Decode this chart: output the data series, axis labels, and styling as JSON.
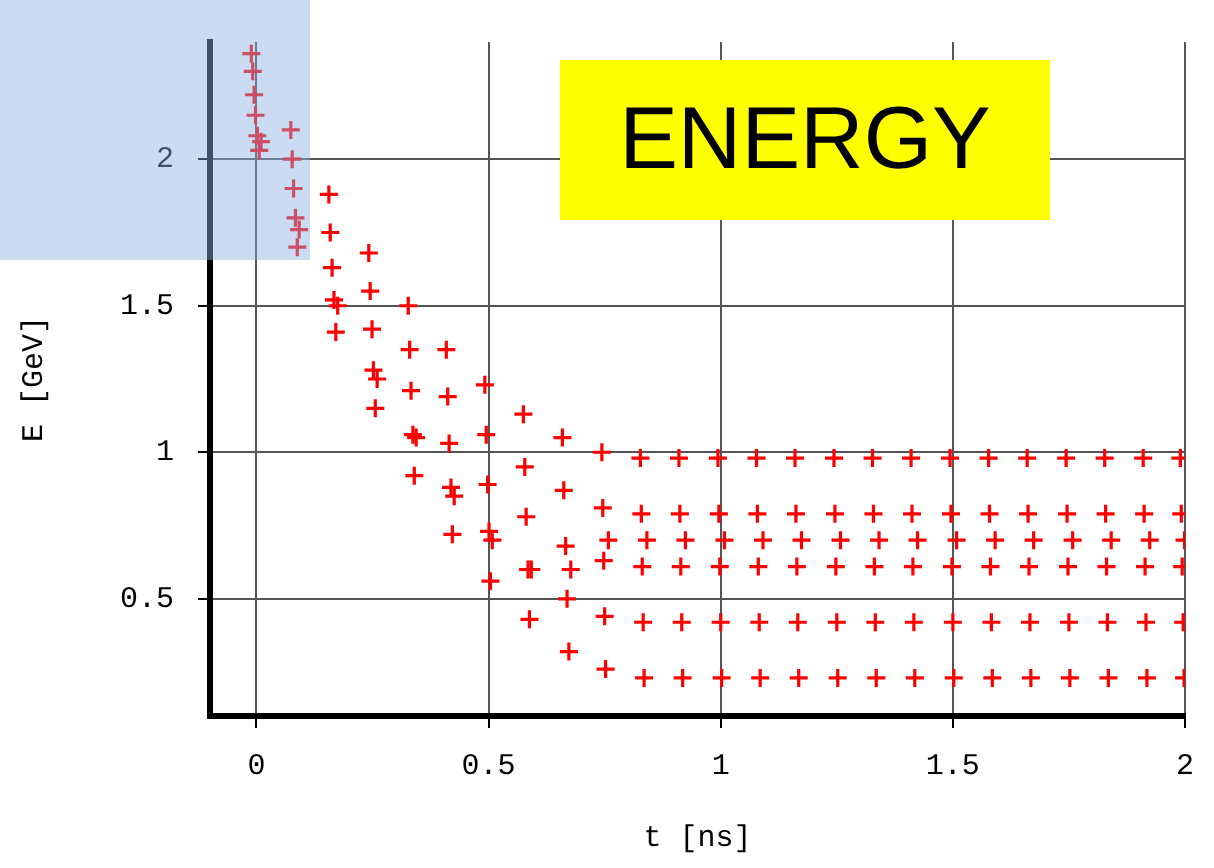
{
  "chart_data": {
    "type": "scatter",
    "xlabel": "t [ns]",
    "ylabel": "E [GeV]",
    "annotations": [
      "ENERGY"
    ],
    "xlim": [
      -0.1,
      2
    ],
    "xticks": [
      0,
      0.5,
      1,
      1.5,
      2
    ],
    "ylim": [
      0.1,
      2.4
    ],
    "yticks": [
      0.5,
      1,
      1.5,
      2
    ],
    "grid": true,
    "legend": false,
    "marker": "cross",
    "series": [
      {
        "color": "#ff0000",
        "x": [
          -0.011,
          -0.008,
          -0.005,
          -0.002,
          0.002,
          0.006,
          0.01,
          0.074,
          0.077,
          0.08,
          0.084,
          0.088,
          0.092,
          0.156,
          0.159,
          0.163,
          0.167,
          0.171,
          0.175,
          0.242,
          0.245,
          0.249,
          0.252,
          0.256,
          0.26,
          0.327,
          0.33,
          0.333,
          0.337,
          0.34,
          0.344,
          0.409,
          0.412,
          0.415,
          0.419,
          0.422,
          0.426,
          0.492,
          0.495,
          0.498,
          0.501,
          0.504,
          0.508,
          0.575,
          0.578,
          0.581,
          0.585,
          0.588,
          0.592,
          0.659,
          0.662,
          0.666,
          0.669,
          0.673,
          0.677,
          0.744,
          0.746,
          0.748,
          0.75,
          0.752,
          0.758,
          0.827,
          0.829,
          0.831,
          0.833,
          0.835,
          0.841,
          0.91,
          0.912,
          0.914,
          0.916,
          0.918,
          0.924,
          0.994,
          0.996,
          0.998,
          1.0,
          1.002,
          1.008,
          1.077,
          1.079,
          1.081,
          1.083,
          1.085,
          1.091,
          1.16,
          1.162,
          1.164,
          1.166,
          1.168,
          1.174,
          1.244,
          1.246,
          1.248,
          1.25,
          1.252,
          1.258,
          1.327,
          1.329,
          1.331,
          1.333,
          1.335,
          1.341,
          1.41,
          1.412,
          1.414,
          1.416,
          1.418,
          1.424,
          1.494,
          1.496,
          1.498,
          1.5,
          1.502,
          1.508,
          1.577,
          1.579,
          1.581,
          1.583,
          1.585,
          1.591,
          1.66,
          1.662,
          1.664,
          1.666,
          1.668,
          1.674,
          1.744,
          1.746,
          1.748,
          1.75,
          1.752,
          1.758,
          1.827,
          1.829,
          1.831,
          1.833,
          1.835,
          1.841,
          1.91,
          1.912,
          1.914,
          1.916,
          1.918,
          1.924,
          1.99,
          1.992,
          1.994,
          1.996,
          1.998,
          1.999
        ],
        "values": [
          2.36,
          2.3,
          2.22,
          2.15,
          2.08,
          2.03,
          2.06,
          2.1,
          2.0,
          1.9,
          1.8,
          1.7,
          1.76,
          1.88,
          1.75,
          1.63,
          1.52,
          1.41,
          1.5,
          1.68,
          1.55,
          1.42,
          1.28,
          1.15,
          1.25,
          1.5,
          1.35,
          1.21,
          1.06,
          0.92,
          1.05,
          1.35,
          1.19,
          1.03,
          0.88,
          0.72,
          0.85,
          1.23,
          1.06,
          0.89,
          0.73,
          0.56,
          0.7,
          1.13,
          0.95,
          0.78,
          0.6,
          0.43,
          0.6,
          1.05,
          0.87,
          0.68,
          0.5,
          0.32,
          0.6,
          1.0,
          0.81,
          0.63,
          0.44,
          0.26,
          0.7,
          0.98,
          0.79,
          0.61,
          0.42,
          0.23,
          0.7,
          0.98,
          0.79,
          0.61,
          0.42,
          0.23,
          0.7,
          0.98,
          0.79,
          0.61,
          0.42,
          0.23,
          0.7,
          0.98,
          0.79,
          0.61,
          0.42,
          0.23,
          0.7,
          0.98,
          0.79,
          0.61,
          0.42,
          0.23,
          0.7,
          0.98,
          0.79,
          0.61,
          0.42,
          0.23,
          0.7,
          0.98,
          0.79,
          0.61,
          0.42,
          0.23,
          0.7,
          0.98,
          0.79,
          0.61,
          0.42,
          0.23,
          0.7,
          0.98,
          0.79,
          0.61,
          0.42,
          0.23,
          0.7,
          0.98,
          0.79,
          0.61,
          0.42,
          0.23,
          0.7,
          0.98,
          0.79,
          0.61,
          0.42,
          0.23,
          0.7,
          0.98,
          0.79,
          0.61,
          0.42,
          0.23,
          0.7,
          0.98,
          0.79,
          0.61,
          0.42,
          0.23,
          0.7,
          0.98,
          0.79,
          0.61,
          0.42,
          0.23,
          0.7,
          0.98,
          0.79,
          0.61,
          0.42,
          0.23,
          0.7
        ]
      }
    ]
  }
}
